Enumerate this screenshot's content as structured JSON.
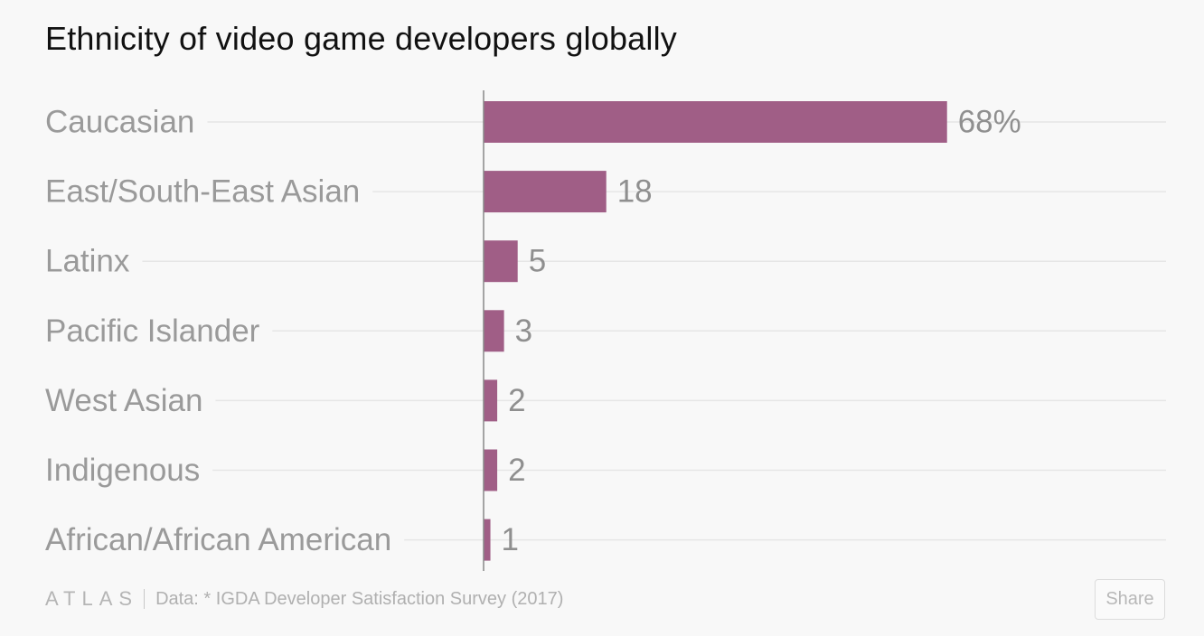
{
  "title": "Ethnicity of video game developers globally",
  "footer": {
    "logo": "ATLAS",
    "source": "Data:  * IGDA Developer Satisfaction Survey (2017)"
  },
  "share_label": "Share",
  "colors": {
    "bar": "#a05e86",
    "label": "#9a9a9a",
    "value": "#8f8f8f",
    "grid": "#e6e6e6",
    "axis": "#888888"
  },
  "chart_data": {
    "type": "bar",
    "orientation": "horizontal",
    "categories": [
      "Caucasian",
      "East/South-East Asian",
      "Latinx",
      "Pacific Islander",
      "West Asian",
      "Indigenous",
      "African/African American"
    ],
    "values": [
      68,
      18,
      5,
      3,
      2,
      2,
      1
    ],
    "value_labels": [
      "68%",
      "18",
      "5",
      "3",
      "2",
      "2",
      "1"
    ],
    "xlim": [
      0,
      100
    ],
    "grid": true,
    "legend": "none"
  }
}
